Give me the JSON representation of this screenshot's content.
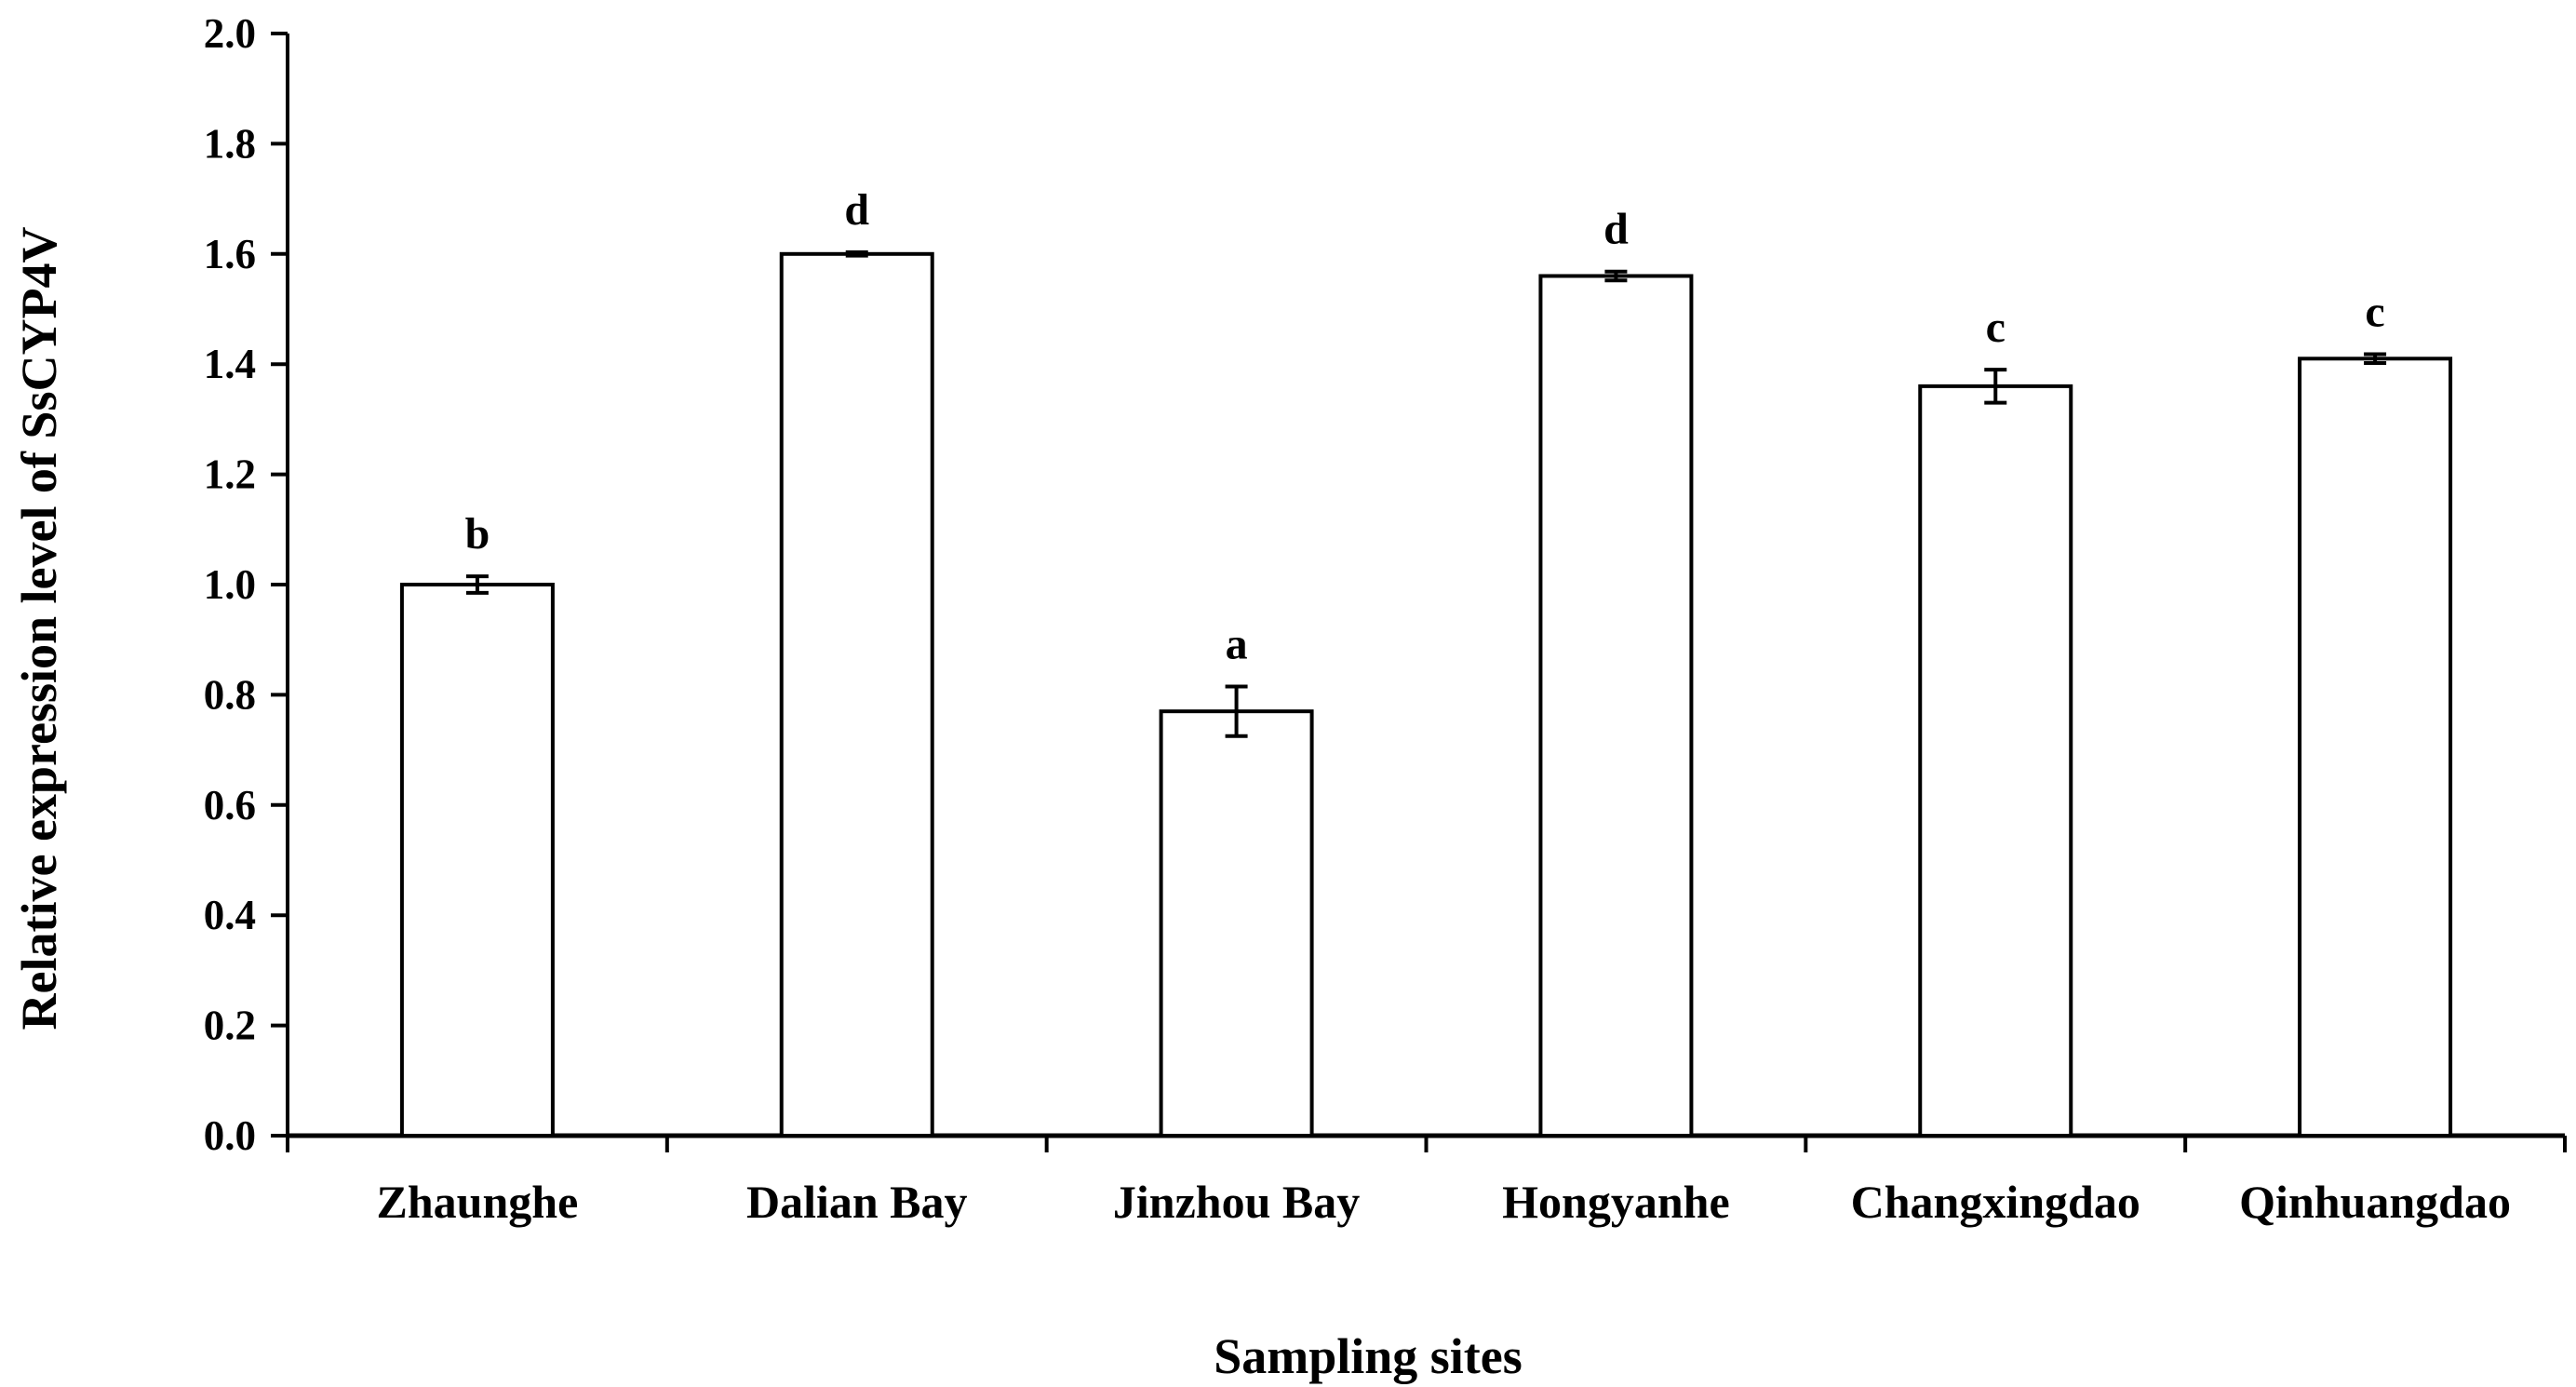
{
  "chart_data": {
    "type": "bar",
    "title": "",
    "xlabel": "Sampling sites",
    "ylabel": "Relative expression level of SsCYP4V",
    "ylim": [
      0,
      2.0
    ],
    "ytick_step": 0.2,
    "yticks": [
      "0.0",
      "0.2",
      "0.4",
      "0.6",
      "0.8",
      "1.0",
      "1.2",
      "1.4",
      "1.6",
      "1.8",
      "2.0"
    ],
    "grid": false,
    "legend": "none",
    "categories": [
      "Zhaunghe",
      "Dalian Bay",
      "Jinzhou Bay",
      "Hongyanhe",
      "Changxingdao",
      "Qinhuangdao"
    ],
    "values": [
      1.0,
      1.6,
      0.77,
      1.56,
      1.36,
      1.41
    ],
    "errors": [
      0.015,
      0.003,
      0.045,
      0.008,
      0.03,
      0.008
    ],
    "significance_labels": [
      "b",
      "d",
      "a",
      "d",
      "c",
      "c"
    ],
    "colors": {
      "bar_fill": "#ffffff",
      "bar_stroke": "#000000",
      "axis": "#000000"
    }
  }
}
